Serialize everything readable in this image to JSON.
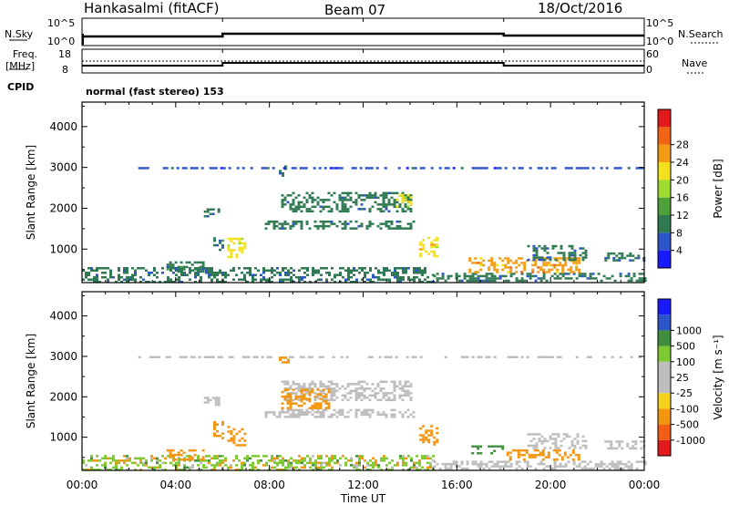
{
  "header": {
    "station": "Hankasalmi (fitACF)",
    "beam": "Beam 07",
    "date": "18/Oct/2016"
  },
  "top_panel": {
    "left_label": "N.Sky",
    "right_label": "N.Search",
    "left_ticks": [
      "10^5",
      "10^0"
    ],
    "right_ticks": [
      "10^5",
      "10^0"
    ]
  },
  "freq_panel": {
    "left_label_1": "Freq.",
    "left_label_2": "[MHz]",
    "right_label": "Nave",
    "left_ticks": [
      "18",
      "8"
    ],
    "right_ticks": [
      "60",
      "0"
    ]
  },
  "cpid": {
    "label": "CPID",
    "value": "normal (fast stereo) 153"
  },
  "colorbars": {
    "power": {
      "title": "Power [dB]",
      "colors": [
        "#1a1aff",
        "#2b55c8",
        "#2f7a52",
        "#4fa03a",
        "#9bdc2f",
        "#f2e11c",
        "#f39c13",
        "#f26414",
        "#e31a1c"
      ],
      "tick_labels": [
        "4",
        "8",
        "12",
        "16",
        "20",
        "24",
        "28"
      ]
    },
    "velocity": {
      "title": "Velocity [m s⁻¹]",
      "colors": [
        "#e31a1c",
        "#f25c14",
        "#f3950f",
        "#f7d21a",
        "#bdbdbd",
        "#bdbdbd",
        "#7ec832",
        "#3f8f3f",
        "#2b55c8",
        "#1a1aff"
      ],
      "tick_labels": [
        "-1000",
        "-500",
        "-100",
        "-25",
        "25",
        "100",
        "500",
        "1000"
      ]
    }
  },
  "chart_data": [
    {
      "type": "heatmap",
      "title": "",
      "quantity": "Power",
      "unit": "dB",
      "xlabel": "Time UT",
      "ylabel": "Slant Range [km]",
      "xlim": [
        0,
        24
      ],
      "ylim": [
        180,
        4600
      ],
      "x_tick_labels": [
        "00:00",
        "04:00",
        "08:00",
        "12:00",
        "16:00",
        "20:00",
        "00:00"
      ],
      "y_tick_labels": [
        "1000",
        "2000",
        "3000",
        "4000"
      ],
      "y_ticks": [
        1000,
        2000,
        3000,
        4000
      ],
      "echo_regions": [
        {
          "t0": 0.0,
          "t1": 15.0,
          "r0": 200,
          "r1": 560,
          "value": 8
        },
        {
          "t0": 15.0,
          "t1": 24.0,
          "r0": 200,
          "r1": 420,
          "value": 8
        },
        {
          "t0": 3.6,
          "t1": 5.2,
          "r0": 450,
          "r1": 700,
          "value": 10
        },
        {
          "t0": 6.2,
          "t1": 7.0,
          "r0": 780,
          "r1": 1280,
          "value": 20
        },
        {
          "t0": 5.6,
          "t1": 6.0,
          "r0": 1000,
          "r1": 1400,
          "value": 10
        },
        {
          "t0": 5.2,
          "t1": 5.8,
          "r0": 1800,
          "r1": 2000,
          "value": 8
        },
        {
          "t0": 7.8,
          "t1": 14.2,
          "r0": 1500,
          "r1": 1700,
          "value": 8
        },
        {
          "t0": 8.5,
          "t1": 14.0,
          "r0": 1900,
          "r1": 2400,
          "value": 8
        },
        {
          "t0": 13.4,
          "t1": 14.1,
          "r0": 2050,
          "r1": 2350,
          "value": 20
        },
        {
          "t0": 14.4,
          "t1": 15.2,
          "r0": 800,
          "r1": 1300,
          "value": 22
        },
        {
          "t0": 8.4,
          "t1": 8.8,
          "r0": 2800,
          "r1": 3050,
          "value": 8
        },
        {
          "t0": 16.5,
          "t1": 21.2,
          "r0": 450,
          "r1": 800,
          "value": 26
        },
        {
          "t0": 19.0,
          "t1": 21.5,
          "r0": 750,
          "r1": 1100,
          "value": 8
        },
        {
          "t0": 22.3,
          "t1": 24.0,
          "r0": 700,
          "r1": 920,
          "value": 8
        },
        {
          "t0": 2.4,
          "t1": 24.0,
          "r0": 2960,
          "r1": 3010,
          "value": 6
        }
      ]
    },
    {
      "type": "heatmap",
      "title": "",
      "quantity": "Velocity",
      "unit": "m s^-1",
      "xlabel": "Time UT",
      "ylabel": "Slant Range [km]",
      "xlim": [
        0,
        24
      ],
      "ylim": [
        180,
        4600
      ],
      "x_tick_labels": [
        "00:00",
        "04:00",
        "08:00",
        "12:00",
        "16:00",
        "20:00",
        "00:00"
      ],
      "y_tick_labels": [
        "1000",
        "2000",
        "3000",
        "4000"
      ],
      "y_ticks": [
        1000,
        2000,
        3000,
        4000
      ],
      "echo_regions": [
        {
          "t0": 0.0,
          "t1": 15.0,
          "r0": 200,
          "r1": 560,
          "value": 60
        },
        {
          "t0": 15.0,
          "t1": 24.0,
          "r0": 200,
          "r1": 420,
          "value": 0
        },
        {
          "t0": 3.6,
          "t1": 5.2,
          "r0": 450,
          "r1": 700,
          "value": -200
        },
        {
          "t0": 6.2,
          "t1": 7.0,
          "r0": 780,
          "r1": 1280,
          "value": -300
        },
        {
          "t0": 5.6,
          "t1": 6.0,
          "r0": 1000,
          "r1": 1400,
          "value": -100
        },
        {
          "t0": 5.2,
          "t1": 5.8,
          "r0": 1800,
          "r1": 2000,
          "value": 0
        },
        {
          "t0": 7.8,
          "t1": 14.2,
          "r0": 1500,
          "r1": 1700,
          "value": 0
        },
        {
          "t0": 8.5,
          "t1": 14.0,
          "r0": 1900,
          "r1": 2400,
          "value": 0
        },
        {
          "t0": 8.5,
          "t1": 10.5,
          "r0": 1700,
          "r1": 2200,
          "value": -300
        },
        {
          "t0": 14.4,
          "t1": 15.2,
          "r0": 800,
          "r1": 1300,
          "value": -300
        },
        {
          "t0": 8.4,
          "t1": 8.8,
          "r0": 2800,
          "r1": 3050,
          "value": -300
        },
        {
          "t0": 16.5,
          "t1": 18.0,
          "r0": 600,
          "r1": 800,
          "value": 200
        },
        {
          "t0": 18.0,
          "t1": 21.2,
          "r0": 450,
          "r1": 700,
          "value": -100
        },
        {
          "t0": 19.0,
          "t1": 21.5,
          "r0": 750,
          "r1": 1100,
          "value": 0
        },
        {
          "t0": 22.3,
          "t1": 24.0,
          "r0": 700,
          "r1": 920,
          "value": 0
        },
        {
          "t0": 2.4,
          "t1": 24.0,
          "r0": 2960,
          "r1": 3010,
          "value": 0
        }
      ]
    }
  ]
}
